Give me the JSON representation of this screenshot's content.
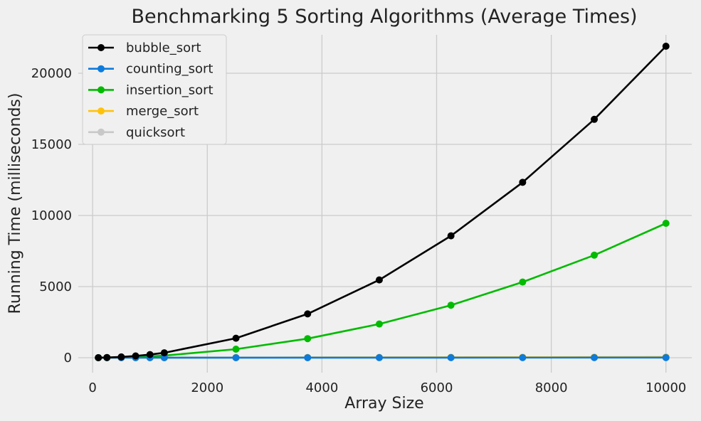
{
  "chart_data": {
    "type": "line",
    "title": "Benchmarking 5 Sorting Algorithms (Average Times)",
    "xlabel": "Array Size",
    "ylabel": "Running Time (milliseconds)",
    "xlim": [
      -250,
      10450
    ],
    "ylim": [
      -1050,
      22700
    ],
    "xticks": [
      0,
      2000,
      4000,
      6000,
      8000,
      10000
    ],
    "yticks": [
      0,
      5000,
      10000,
      15000,
      20000
    ],
    "grid": true,
    "legend_position": "top-left",
    "x": [
      100,
      250,
      500,
      750,
      1000,
      1250,
      2500,
      3750,
      5000,
      6250,
      7500,
      8750,
      10000
    ],
    "series": [
      {
        "name": "bubble_sort",
        "color": "#000000",
        "values": [
          2,
          14,
          55,
          125,
          220,
          345,
          1370,
          3080,
          5470,
          8570,
          12330,
          16760,
          21900
        ]
      },
      {
        "name": "counting_sort",
        "color": "#0c7bdc",
        "values": [
          0.1,
          0.2,
          0.4,
          0.6,
          0.8,
          1,
          2,
          3,
          4,
          5,
          6,
          7,
          8
        ]
      },
      {
        "name": "insertion_sort",
        "color": "#00bb00",
        "values": [
          1,
          6,
          24,
          54,
          95,
          148,
          600,
          1340,
          2370,
          3690,
          5320,
          7210,
          9450
        ]
      },
      {
        "name": "merge_sort",
        "color": "#ffc20a",
        "values": [
          0.3,
          0.8,
          1.7,
          2.7,
          3.7,
          4.8,
          10,
          16,
          22,
          28,
          34,
          40,
          47
        ]
      },
      {
        "name": "quicksort",
        "color": "#c8c8c8",
        "values": [
          0.3,
          0.7,
          1.5,
          2.4,
          3.2,
          4.2,
          9,
          14,
          19,
          25,
          31,
          37,
          43
        ]
      }
    ]
  }
}
